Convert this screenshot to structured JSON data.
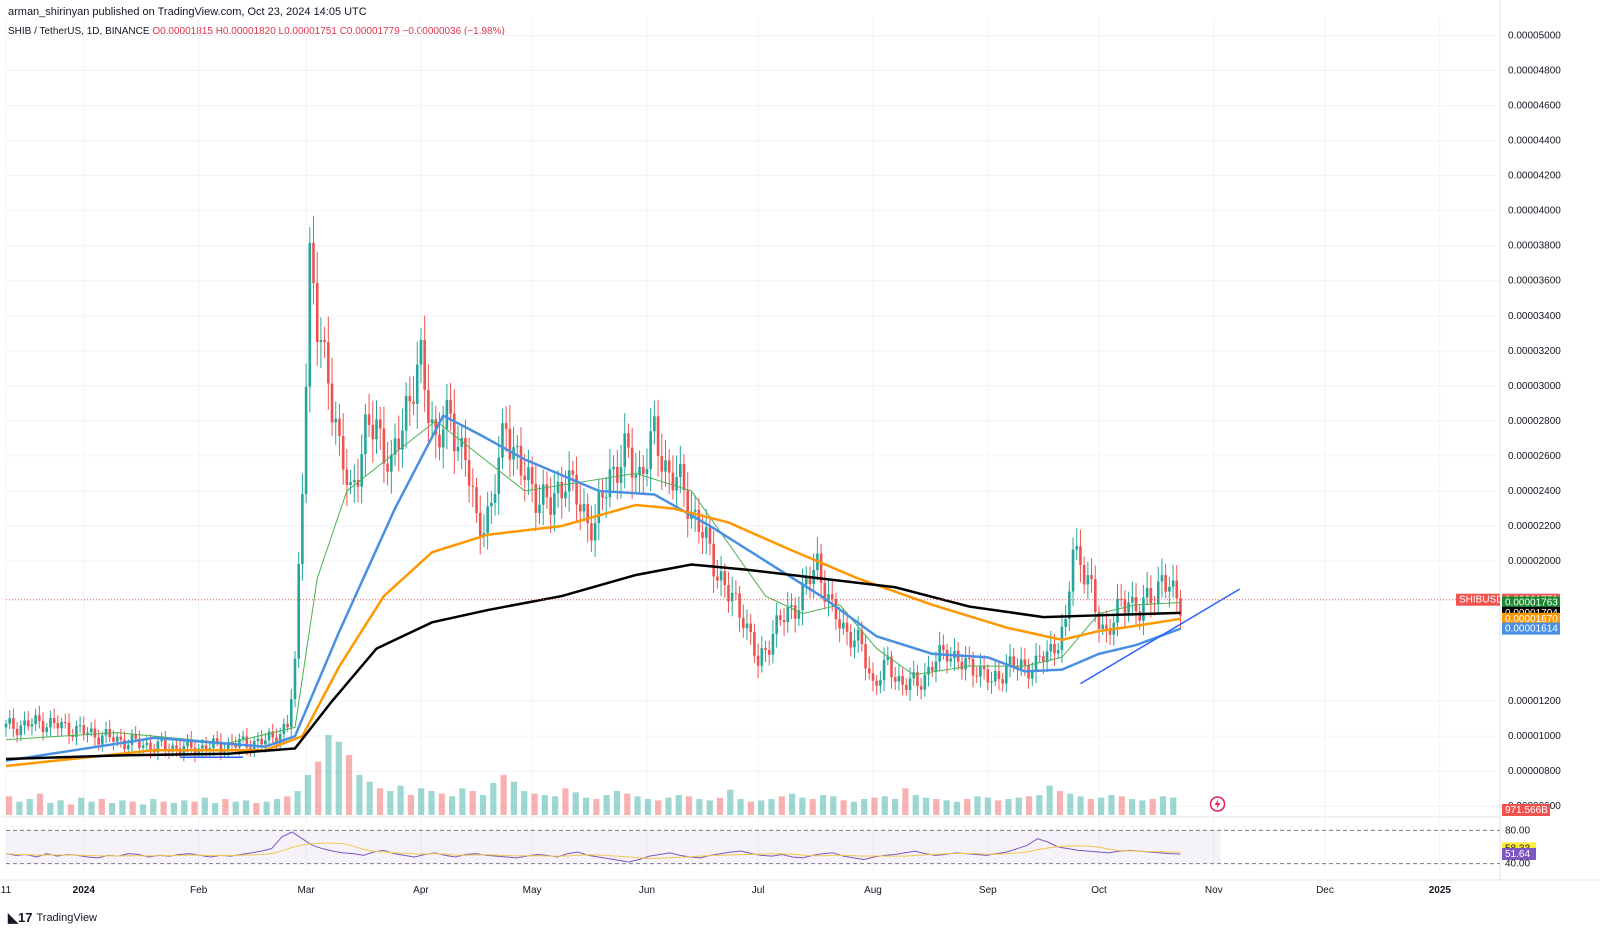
{
  "header": {
    "publisher": "arman_shirinyan published on TradingView.com, Oct 23, 2024 14:05 UTC"
  },
  "symbol": {
    "name": "SHIB / TetherUS, 1D, BINANCE",
    "ohlc": "O0.00001815 H0.00001820 L0.00001751 C0.00001779 −0.00000036 (−1.98%)"
  },
  "footer": {
    "logo_text": "TradingView"
  },
  "colors": {
    "up": "#26a69a",
    "down": "#ef5350",
    "ma_fast": "#4caf50",
    "ma_blue": "#4a90e2",
    "ma_orange": "#ff9800",
    "ma_black": "#000000",
    "rsi": "#7e57c2"
  },
  "chart_data": {
    "type": "line",
    "price_axis": {
      "ticks": [
        "0.00005000",
        "0.00004800",
        "0.00004600",
        "0.00004400",
        "0.00004200",
        "0.00004000",
        "0.00003800",
        "0.00003600",
        "0.00003400",
        "0.00003200",
        "0.00003000",
        "0.00002800",
        "0.00002600",
        "0.00002400",
        "0.00002200",
        "0.00002000",
        "0.00001200",
        "0.00001000",
        "0.00000800",
        "0.00000600"
      ],
      "ylim": [
        5.5e-06,
        5.1e-05
      ]
    },
    "time_axis": {
      "ticks": [
        {
          "label": "11",
          "day": 0,
          "bold": false
        },
        {
          "label": "2024",
          "day": 21,
          "bold": true
        },
        {
          "label": "Feb",
          "day": 52,
          "bold": false
        },
        {
          "label": "Mar",
          "day": 81,
          "bold": false
        },
        {
          "label": "Apr",
          "day": 112,
          "bold": false
        },
        {
          "label": "May",
          "day": 142,
          "bold": false
        },
        {
          "label": "Jun",
          "day": 173,
          "bold": false
        },
        {
          "label": "Jul",
          "day": 203,
          "bold": false
        },
        {
          "label": "Aug",
          "day": 234,
          "bold": false
        },
        {
          "label": "Sep",
          "day": 265,
          "bold": false
        },
        {
          "label": "Oct",
          "day": 295,
          "bold": false
        },
        {
          "label": "Nov",
          "day": 326,
          "bold": false
        },
        {
          "label": "Dec",
          "day": 356,
          "bold": false
        },
        {
          "label": "2025",
          "day": 387,
          "bold": true
        }
      ]
    },
    "x_unit": "days since Dec 11 2023",
    "close": [
      [
        0,
        1.05e-05
      ],
      [
        10,
        1.08e-05
      ],
      [
        20,
        1.03e-05
      ],
      [
        30,
        9.8e-06
      ],
      [
        40,
        9.4e-06
      ],
      [
        50,
        9.3e-06
      ],
      [
        60,
        9.5e-06
      ],
      [
        70,
        9.7e-06
      ],
      [
        76,
        1.05e-05
      ],
      [
        78,
        1.4e-05
      ],
      [
        80,
        2.5e-05
      ],
      [
        82,
        3.7e-05
      ],
      [
        84,
        3.3e-05
      ],
      [
        87,
        3.1e-05
      ],
      [
        90,
        2.6e-05
      ],
      [
        93,
        2.4e-05
      ],
      [
        97,
        2.7e-05
      ],
      [
        100,
        2.8e-05
      ],
      [
        104,
        2.5e-05
      ],
      [
        108,
        2.9e-05
      ],
      [
        112,
        3.1e-05
      ],
      [
        116,
        2.7e-05
      ],
      [
        120,
        2.8e-05
      ],
      [
        124,
        2.6e-05
      ],
      [
        127,
        2.2e-05
      ],
      [
        131,
        2.3e-05
      ],
      [
        135,
        2.8e-05
      ],
      [
        139,
        2.5e-05
      ],
      [
        143,
        2.4e-05
      ],
      [
        147,
        2.3e-05
      ],
      [
        151,
        2.5e-05
      ],
      [
        155,
        2.3e-05
      ],
      [
        159,
        2.2e-05
      ],
      [
        163,
        2.5e-05
      ],
      [
        167,
        2.6e-05
      ],
      [
        171,
        2.5e-05
      ],
      [
        175,
        2.7e-05
      ],
      [
        179,
        2.5e-05
      ],
      [
        183,
        2.4e-05
      ],
      [
        187,
        2.2e-05
      ],
      [
        191,
        2e-05
      ],
      [
        195,
        1.8e-05
      ],
      [
        199,
        1.7e-05
      ],
      [
        203,
        1.4e-05
      ],
      [
        207,
        1.6e-05
      ],
      [
        211,
        1.7e-05
      ],
      [
        215,
        1.8e-05
      ],
      [
        219,
        2e-05
      ],
      [
        223,
        1.7e-05
      ],
      [
        227,
        1.6e-05
      ],
      [
        231,
        1.5e-05
      ],
      [
        234,
        1.3e-05
      ],
      [
        238,
        1.4e-05
      ],
      [
        242,
        1.3e-05
      ],
      [
        246,
        1.3e-05
      ],
      [
        250,
        1.4e-05
      ],
      [
        254,
        1.5e-05
      ],
      [
        258,
        1.4e-05
      ],
      [
        262,
        1.4e-05
      ],
      [
        266,
        1.3e-05
      ],
      [
        270,
        1.4e-05
      ],
      [
        274,
        1.4e-05
      ],
      [
        278,
        1.4e-05
      ],
      [
        282,
        1.5e-05
      ],
      [
        286,
        1.6e-05
      ],
      [
        288,
        2.1e-05
      ],
      [
        290,
        2e-05
      ],
      [
        292,
        1.9e-05
      ],
      [
        294,
        1.7e-05
      ],
      [
        297,
        1.6e-05
      ],
      [
        300,
        1.7e-05
      ],
      [
        303,
        1.8e-05
      ],
      [
        306,
        1.7e-05
      ],
      [
        309,
        1.8e-05
      ],
      [
        312,
        1.9e-05
      ],
      [
        315,
        1.8e-05
      ],
      [
        317,
        1.779e-05
      ]
    ],
    "series": [
      {
        "name": "",
        "color": "#4caf50",
        "values": [
          [
            0,
            9.8e-06
          ],
          [
            30,
            1.02e-05
          ],
          [
            60,
            9.6e-06
          ],
          [
            78,
            1.05e-05
          ],
          [
            84,
            1.9e-05
          ],
          [
            92,
            2.4e-05
          ],
          [
            104,
            2.6e-05
          ],
          [
            116,
            2.8e-05
          ],
          [
            128,
            2.6e-05
          ],
          [
            140,
            2.4e-05
          ],
          [
            155,
            2.45e-05
          ],
          [
            170,
            2.5e-05
          ],
          [
            185,
            2.4e-05
          ],
          [
            195,
            2.1e-05
          ],
          [
            205,
            1.8e-05
          ],
          [
            215,
            1.7e-05
          ],
          [
            225,
            1.75e-05
          ],
          [
            235,
            1.5e-05
          ],
          [
            245,
            1.35e-05
          ],
          [
            260,
            1.4e-05
          ],
          [
            275,
            1.4e-05
          ],
          [
            285,
            1.45e-05
          ],
          [
            295,
            1.7e-05
          ],
          [
            305,
            1.75e-05
          ],
          [
            317,
            1.763e-05
          ]
        ]
      },
      {
        "name": "",
        "color": "#4a90e2",
        "values": [
          [
            0,
            8.6e-06
          ],
          [
            40,
            9.9e-06
          ],
          [
            70,
            9.4e-06
          ],
          [
            78,
            1e-05
          ],
          [
            90,
            1.6e-05
          ],
          [
            105,
            2.3e-05
          ],
          [
            118,
            2.83e-05
          ],
          [
            128,
            2.72e-05
          ],
          [
            140,
            2.58e-05
          ],
          [
            160,
            2.4e-05
          ],
          [
            175,
            2.38e-05
          ],
          [
            190,
            2.2e-05
          ],
          [
            205,
            2e-05
          ],
          [
            220,
            1.8e-05
          ],
          [
            235,
            1.57e-05
          ],
          [
            250,
            1.47e-05
          ],
          [
            265,
            1.45e-05
          ],
          [
            275,
            1.37e-05
          ],
          [
            285,
            1.38e-05
          ],
          [
            295,
            1.47e-05
          ],
          [
            305,
            1.52e-05
          ],
          [
            317,
            1.614e-05
          ]
        ]
      },
      {
        "name": "",
        "color": "#ff9800",
        "values": [
          [
            0,
            8.3e-06
          ],
          [
            40,
            9.2e-06
          ],
          [
            70,
            9.2e-06
          ],
          [
            80,
            1e-05
          ],
          [
            90,
            1.4e-05
          ],
          [
            102,
            1.8e-05
          ],
          [
            115,
            2.05e-05
          ],
          [
            130,
            2.15e-05
          ],
          [
            150,
            2.2e-05
          ],
          [
            170,
            2.32e-05
          ],
          [
            180,
            2.3e-05
          ],
          [
            195,
            2.22e-05
          ],
          [
            210,
            2.08e-05
          ],
          [
            230,
            1.9e-05
          ],
          [
            250,
            1.75e-05
          ],
          [
            270,
            1.62e-05
          ],
          [
            285,
            1.55e-05
          ],
          [
            295,
            1.6e-05
          ],
          [
            305,
            1.63e-05
          ],
          [
            317,
            1.67e-05
          ]
        ]
      },
      {
        "name": "",
        "color": "#000000",
        "values": [
          [
            0,
            8.7e-06
          ],
          [
            30,
            8.9e-06
          ],
          [
            60,
            9e-06
          ],
          [
            78,
            9.3e-06
          ],
          [
            88,
            1.2e-05
          ],
          [
            100,
            1.5e-05
          ],
          [
            115,
            1.65e-05
          ],
          [
            130,
            1.72e-05
          ],
          [
            150,
            1.8e-05
          ],
          [
            170,
            1.92e-05
          ],
          [
            185,
            1.98e-05
          ],
          [
            200,
            1.95e-05
          ],
          [
            220,
            1.9e-05
          ],
          [
            240,
            1.85e-05
          ],
          [
            260,
            1.74e-05
          ],
          [
            280,
            1.68e-05
          ],
          [
            295,
            1.69e-05
          ],
          [
            317,
            1.704e-05
          ]
        ]
      }
    ],
    "volume": [
      14,
      10,
      12,
      16,
      9,
      11,
      8,
      13,
      10,
      12,
      9,
      11,
      10,
      8,
      12,
      10,
      9,
      11,
      10,
      13,
      9,
      12,
      10,
      11,
      9,
      10,
      12,
      14,
      18,
      30,
      40,
      60,
      55,
      45,
      30,
      25,
      20,
      18,
      22,
      15,
      20,
      18,
      16,
      14,
      20,
      18,
      15,
      24,
      30,
      25,
      18,
      16,
      15,
      14,
      20,
      17,
      13,
      12,
      15,
      18,
      16,
      14,
      12,
      11,
      13,
      15,
      14,
      12,
      11,
      13,
      19,
      12,
      10,
      11,
      12,
      14,
      16,
      13,
      12,
      15,
      14,
      11,
      10,
      12,
      13,
      14,
      12,
      20,
      15,
      13,
      12,
      11,
      10,
      12,
      14,
      13,
      11,
      12,
      13,
      14,
      15,
      22,
      18,
      16,
      14,
      12,
      13,
      15,
      14,
      12,
      11,
      12,
      14,
      13
    ],
    "rsi": {
      "levels": [
        80,
        58.33,
        51.64,
        40
      ],
      "values": [
        52,
        50,
        51,
        48,
        52,
        49,
        51,
        50,
        48,
        47,
        50,
        49,
        52,
        51,
        48,
        50,
        49,
        51,
        52,
        50,
        48,
        50,
        49,
        51,
        53,
        55,
        58,
        72,
        78,
        70,
        62,
        58,
        55,
        53,
        52,
        50,
        54,
        56,
        52,
        50,
        48,
        51,
        53,
        50,
        48,
        51,
        52,
        50,
        49,
        48,
        47,
        49,
        51,
        50,
        48,
        52,
        54,
        50,
        48,
        46,
        44,
        42,
        45,
        49,
        51,
        53,
        50,
        48,
        47,
        50,
        52,
        54,
        55,
        52,
        50,
        49,
        51,
        48,
        47,
        50,
        52,
        53,
        49,
        47,
        45,
        48,
        50,
        51,
        53,
        55,
        52,
        50,
        51,
        53,
        52,
        51,
        50,
        52,
        54,
        58,
        62,
        70,
        66,
        60,
        58,
        56,
        55,
        54,
        53,
        55,
        56,
        55,
        54,
        53,
        52,
        51.64
      ]
    },
    "last_price_tags": [
      {
        "text": "SHIBUSDT",
        "color": "#ef5350"
      },
      {
        "text": "0.00001779",
        "color": "#ef5350"
      },
      {
        "text": "09:54:59",
        "color": "#ef5350"
      },
      {
        "text": "0.00001763",
        "color": "#1b8a2e"
      },
      {
        "text": "0.00001704",
        "color": "#000000"
      },
      {
        "text": "0.00001670",
        "color": "#ff9800"
      },
      {
        "text": "0.00001614",
        "color": "#4a90e2"
      },
      {
        "text": "971.566B",
        "color": "#ef5350"
      },
      {
        "text": "80.00",
        "color": null
      },
      {
        "text": "58.33",
        "color": "#ffeb3b"
      },
      {
        "text": "51.64",
        "color": "#7e57c2"
      },
      {
        "text": "40.00",
        "color": null
      }
    ]
  }
}
